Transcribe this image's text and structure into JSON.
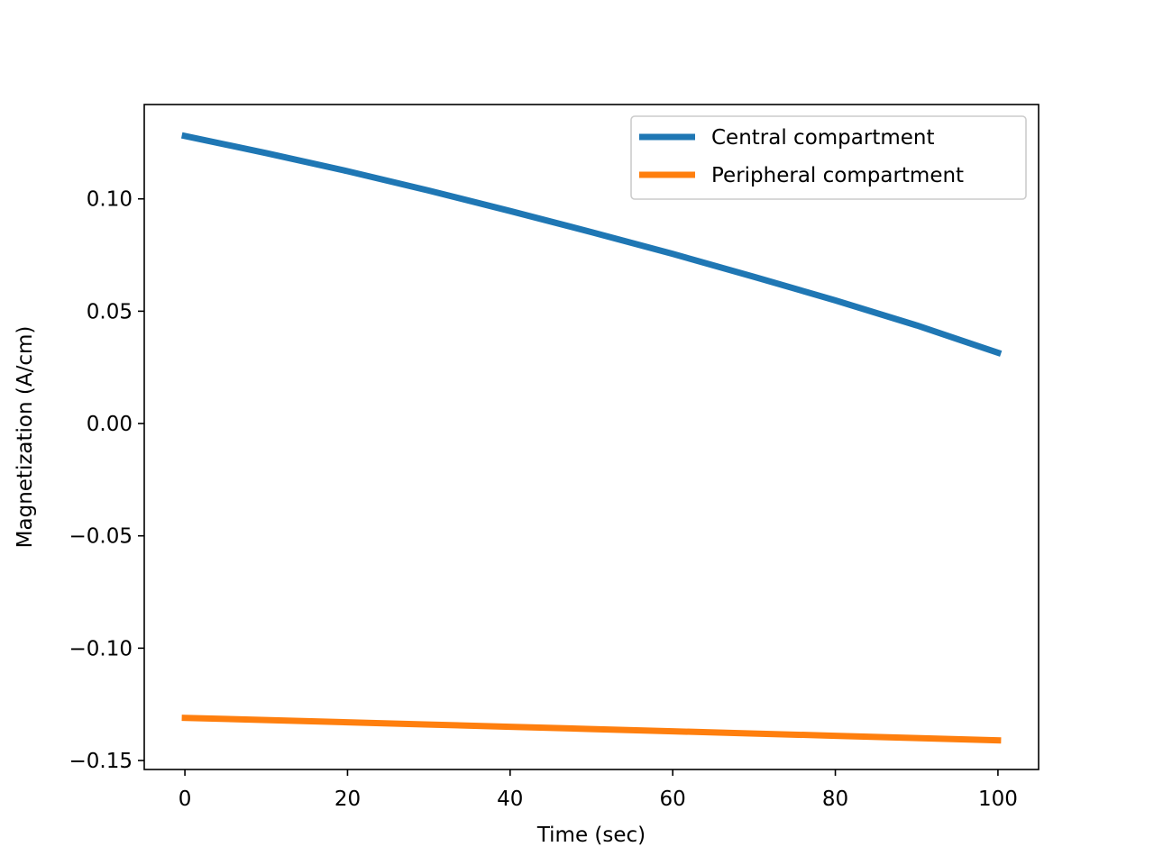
{
  "chart_data": {
    "type": "line",
    "title": "",
    "xlabel": "Time (sec)",
    "ylabel": "Magnetization (A/cm)",
    "xlim": [
      -5,
      105
    ],
    "ylim": [
      -0.154,
      0.142
    ],
    "grid": false,
    "legend_position": "top-right",
    "x_ticks": [
      {
        "value": 0,
        "label": "0"
      },
      {
        "value": 20,
        "label": "20"
      },
      {
        "value": 40,
        "label": "40"
      },
      {
        "value": 60,
        "label": "60"
      },
      {
        "value": 80,
        "label": "80"
      },
      {
        "value": 100,
        "label": "100"
      }
    ],
    "y_ticks": [
      {
        "value": 0.1,
        "label": "0.10"
      },
      {
        "value": 0.05,
        "label": "0.05"
      },
      {
        "value": 0.0,
        "label": "0.00"
      },
      {
        "value": -0.05,
        "label": "−0.05"
      },
      {
        "value": -0.1,
        "label": "−0.10"
      },
      {
        "value": -0.15,
        "label": "−0.15"
      }
    ],
    "x": [
      0,
      10,
      20,
      30,
      40,
      50,
      60,
      70,
      80,
      90,
      100
    ],
    "series": [
      {
        "name": "Central compartment",
        "color": "#1f77b4",
        "values": [
          0.128,
          0.1204,
          0.1123,
          0.1037,
          0.0946,
          0.0852,
          0.0755,
          0.0653,
          0.0548,
          0.0437,
          0.0315
        ]
      },
      {
        "name": "Peripheral compartment",
        "color": "#ff7f0e",
        "values": [
          -0.131,
          -0.132,
          -0.133,
          -0.134,
          -0.135,
          -0.136,
          -0.137,
          -0.138,
          -0.139,
          -0.14,
          -0.141
        ]
      }
    ]
  }
}
